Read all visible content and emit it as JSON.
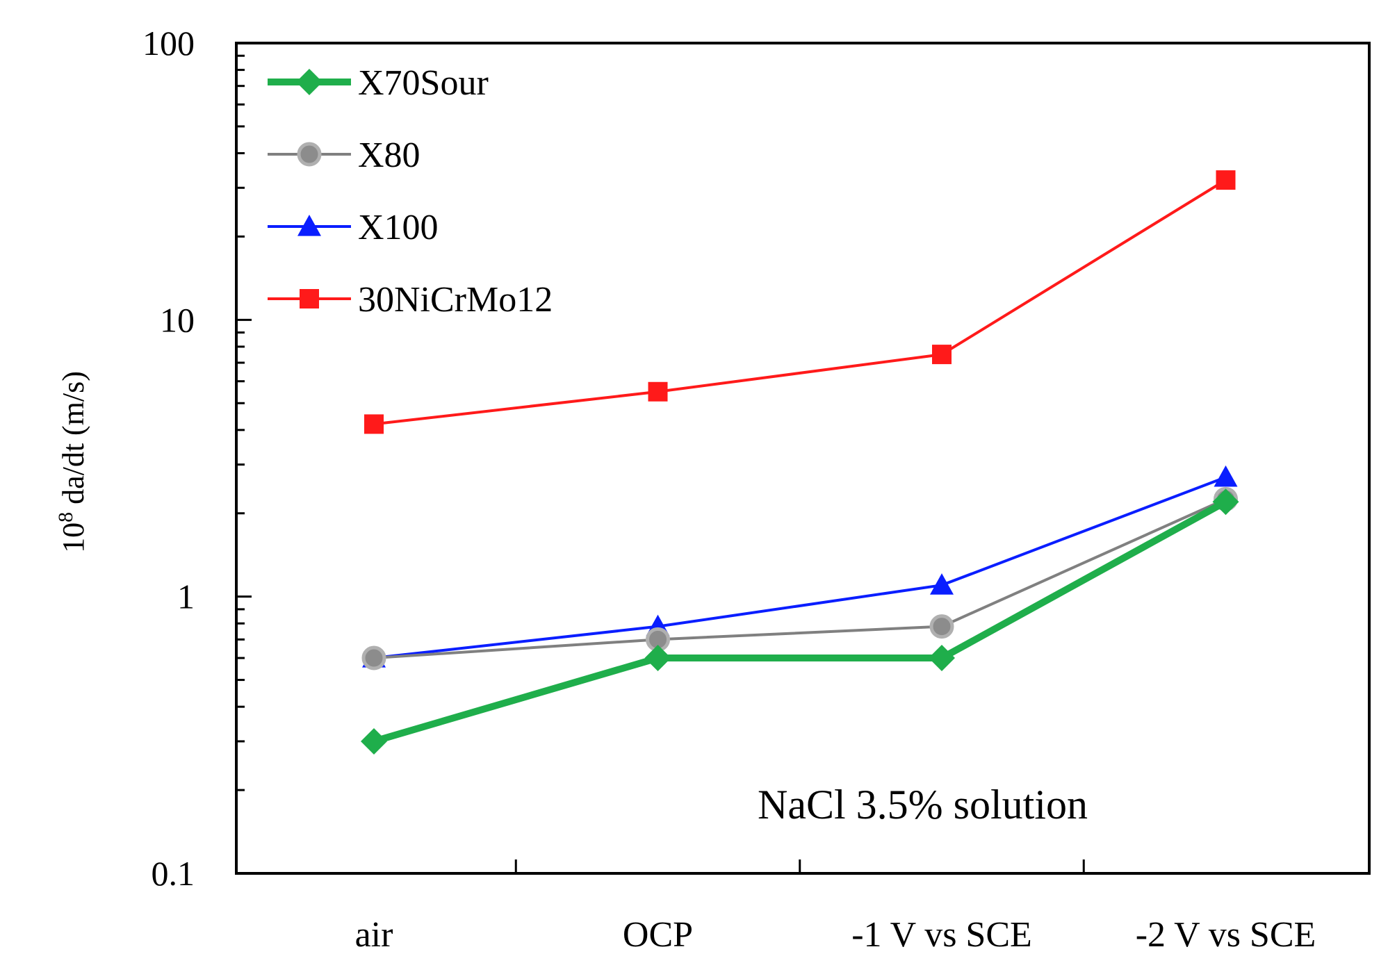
{
  "chart_data": {
    "type": "line",
    "title": "",
    "categories": [
      "air",
      "OCP",
      "-1 V vs SCE",
      "-2 V vs SCE"
    ],
    "xlabel": "",
    "ylabel": {
      "prefix": "10",
      "exp": "8",
      "rest": " da/dt (m/s)"
    },
    "yscale": "log",
    "ylim": [
      0.1,
      100
    ],
    "yticks": [
      {
        "value": 0.1,
        "label": "0.1"
      },
      {
        "value": 1,
        "label": "1"
      },
      {
        "value": 10,
        "label": "10"
      },
      {
        "value": 100,
        "label": "100"
      }
    ],
    "annotation": "NaCl 3.5% solution",
    "legend_position": "top-left",
    "series": [
      {
        "name": "X70Sour",
        "color": "#1fae4b",
        "marker": "diamond",
        "width": "thick",
        "values": [
          0.3,
          0.6,
          0.6,
          2.2
        ]
      },
      {
        "name": "X80",
        "color": "#808080",
        "marker": "circle",
        "width": "normal",
        "values": [
          0.6,
          0.7,
          0.78,
          2.25
        ]
      },
      {
        "name": "X100",
        "color": "#0a1eff",
        "marker": "triangle",
        "width": "normal",
        "values": [
          0.6,
          0.78,
          1.1,
          2.7
        ]
      },
      {
        "name": "30NiCrMo12",
        "color": "#ff1a1a",
        "marker": "square",
        "width": "normal",
        "values": [
          4.2,
          5.5,
          7.5,
          32
        ]
      }
    ]
  }
}
